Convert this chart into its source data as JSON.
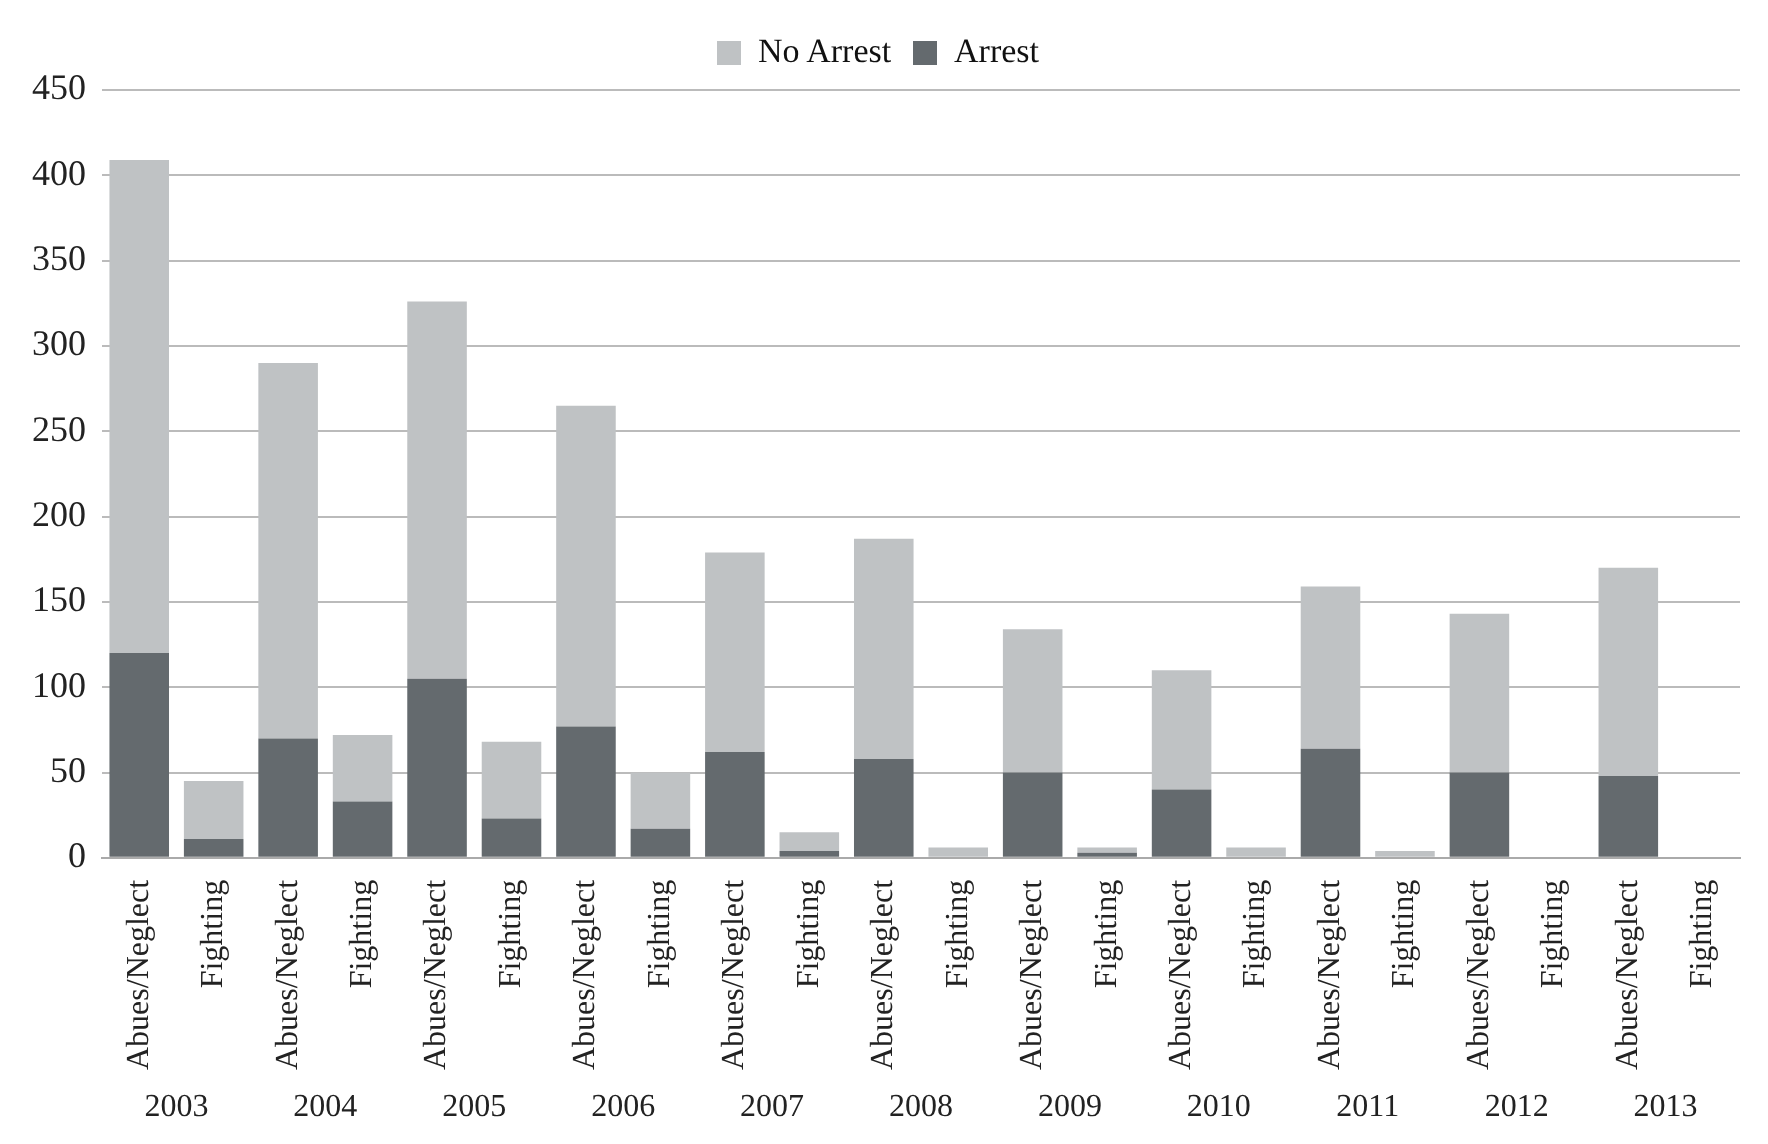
{
  "chart_data": {
    "type": "bar",
    "stacked": true,
    "categories": [
      "Abues/Neglect",
      "Fighting",
      "Abues/Neglect",
      "Fighting",
      "Abues/Neglect",
      "Fighting",
      "Abues/Neglect",
      "Fighting",
      "Abues/Neglect",
      "Fighting",
      "Abues/Neglect",
      "Fighting",
      "Abues/Neglect",
      "Fighting",
      "Abues/Neglect",
      "Fighting",
      "Abues/Neglect",
      "Fighting",
      "Abues/Neglect",
      "Fighting",
      "Abues/Neglect",
      "Fighting"
    ],
    "series": [
      {
        "name": "Arrest",
        "color": "#646a6e",
        "values": [
          120,
          11,
          70,
          33,
          105,
          23,
          77,
          17,
          62,
          4,
          58,
          0,
          50,
          3,
          40,
          0,
          64,
          0,
          50,
          0,
          48,
          0
        ]
      },
      {
        "name": "No Arrest",
        "color": "#bfc2c4",
        "values": [
          289,
          34,
          220,
          39,
          221,
          45,
          188,
          33,
          117,
          11,
          129,
          6,
          84,
          3,
          70,
          6,
          95,
          4,
          93,
          0,
          122,
          0
        ]
      }
    ],
    "annotations": [
      "2003",
      "2004",
      "2005",
      "2006",
      "2007",
      "2008",
      "2009",
      "2010",
      "2011",
      "2012",
      "2013"
    ],
    "ylim": [
      0,
      450
    ],
    "yticks": [
      0,
      50,
      100,
      150,
      200,
      250,
      300,
      350,
      400,
      450
    ],
    "grid": "y",
    "legend": "top"
  }
}
